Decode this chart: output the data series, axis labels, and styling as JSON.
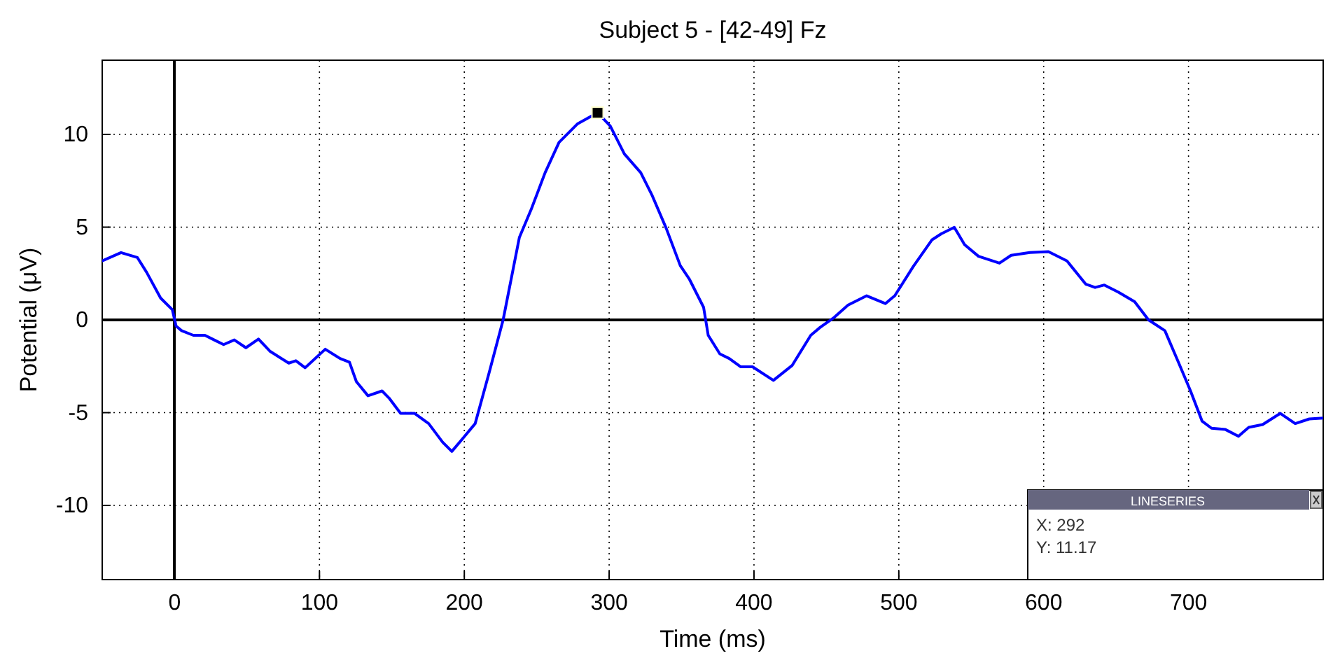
{
  "chart_data": {
    "type": "line",
    "title": "Subject 5 - [42-49] Fz",
    "xlabel": "Time (ms)",
    "ylabel": "Potential (μV)",
    "xlim": [
      -50,
      793
    ],
    "ylim": [
      -14,
      14
    ],
    "xticks": [
      0,
      100,
      200,
      300,
      400,
      500,
      600,
      700
    ],
    "yticks": [
      -10,
      -5,
      0,
      5,
      10
    ],
    "grid": true,
    "annotations": [
      "LINESERIES",
      "X: 292",
      "Y: 11.17"
    ],
    "series": [
      {
        "color": "#000000",
        "line_style": "solid",
        "x": [
          0,
          0
        ],
        "values": [
          -14,
          14
        ]
      },
      {
        "color": "#000000",
        "line_style": "solid",
        "x": [
          -50,
          793
        ],
        "values": [
          0,
          0
        ]
      },
      {
        "color": "#0000ff",
        "marker": "none",
        "line_style": "solid",
        "x": [
          -50,
          -37,
          -25.7,
          -19.3,
          -9.7,
          -1.6,
          1,
          4.8,
          12.9,
          20.9,
          27.3,
          33.8,
          41.2,
          49.2,
          57.9,
          66,
          78.8,
          83.7,
          90.1,
          104,
          114.2,
          120.7,
          125.5,
          133.5,
          143.2,
          148,
          156,
          165.7,
          175.4,
          185,
          191.4,
          199.5,
          207.5,
          217.2,
          226.8,
          238,
          246.1,
          255.8,
          265.4,
          278.3,
          292,
          300.8,
          310.5,
          321.8,
          329.8,
          339.4,
          349.1,
          355.5,
          365.2,
          368.4,
          376.4,
          382.9,
          390.9,
          399,
          413.4,
          426.3,
          439.2,
          445.7,
          455.3,
          465,
          477.8,
          490.7,
          497.2,
          510,
          522.8,
          529.3,
          538.3,
          545.4,
          555,
          569.5,
          577.5,
          590.4,
          603.3,
          616.1,
          629,
          635.5,
          641.9,
          651.5,
          662.8,
          672.4,
          683.7,
          693.3,
          701.4,
          709.4,
          715.9,
          725.5,
          734.5,
          741.6,
          751.2,
          763.4,
          773.7,
          783.4,
          793
        ],
        "values": [
          3.18,
          3.63,
          3.36,
          2.56,
          1.18,
          0.55,
          -0.33,
          -0.58,
          -0.83,
          -0.83,
          -1.08,
          -1.33,
          -1.08,
          -1.5,
          -1.03,
          -1.7,
          -2.33,
          -2.2,
          -2.58,
          -1.58,
          -2.08,
          -2.28,
          -3.33,
          -4.09,
          -3.83,
          -4.21,
          -5.04,
          -5.04,
          -5.59,
          -6.59,
          -7.09,
          -6.34,
          -5.59,
          -2.83,
          0,
          4.44,
          5.94,
          7.94,
          9.57,
          10.58,
          11.17,
          10.45,
          8.95,
          7.94,
          6.69,
          4.94,
          2.93,
          2.18,
          0.68,
          -0.83,
          -1.83,
          -2.08,
          -2.53,
          -2.53,
          -3.26,
          -2.46,
          -0.83,
          -0.4,
          0.13,
          0.8,
          1.3,
          0.88,
          1.3,
          2.88,
          4.31,
          4.64,
          4.99,
          4.06,
          3.43,
          3.06,
          3.48,
          3.63,
          3.68,
          3.18,
          1.93,
          1.75,
          1.88,
          1.5,
          0.98,
          0,
          -0.58,
          -2.33,
          -3.83,
          -5.46,
          -5.84,
          -5.91,
          -6.27,
          -5.79,
          -5.64,
          -5.04,
          -5.59,
          -5.34,
          -5.29
        ]
      },
      {
        "type": "scatter",
        "color": "#000000",
        "marker": "square",
        "x": [
          292
        ],
        "values": [
          11.17
        ]
      }
    ]
  }
}
